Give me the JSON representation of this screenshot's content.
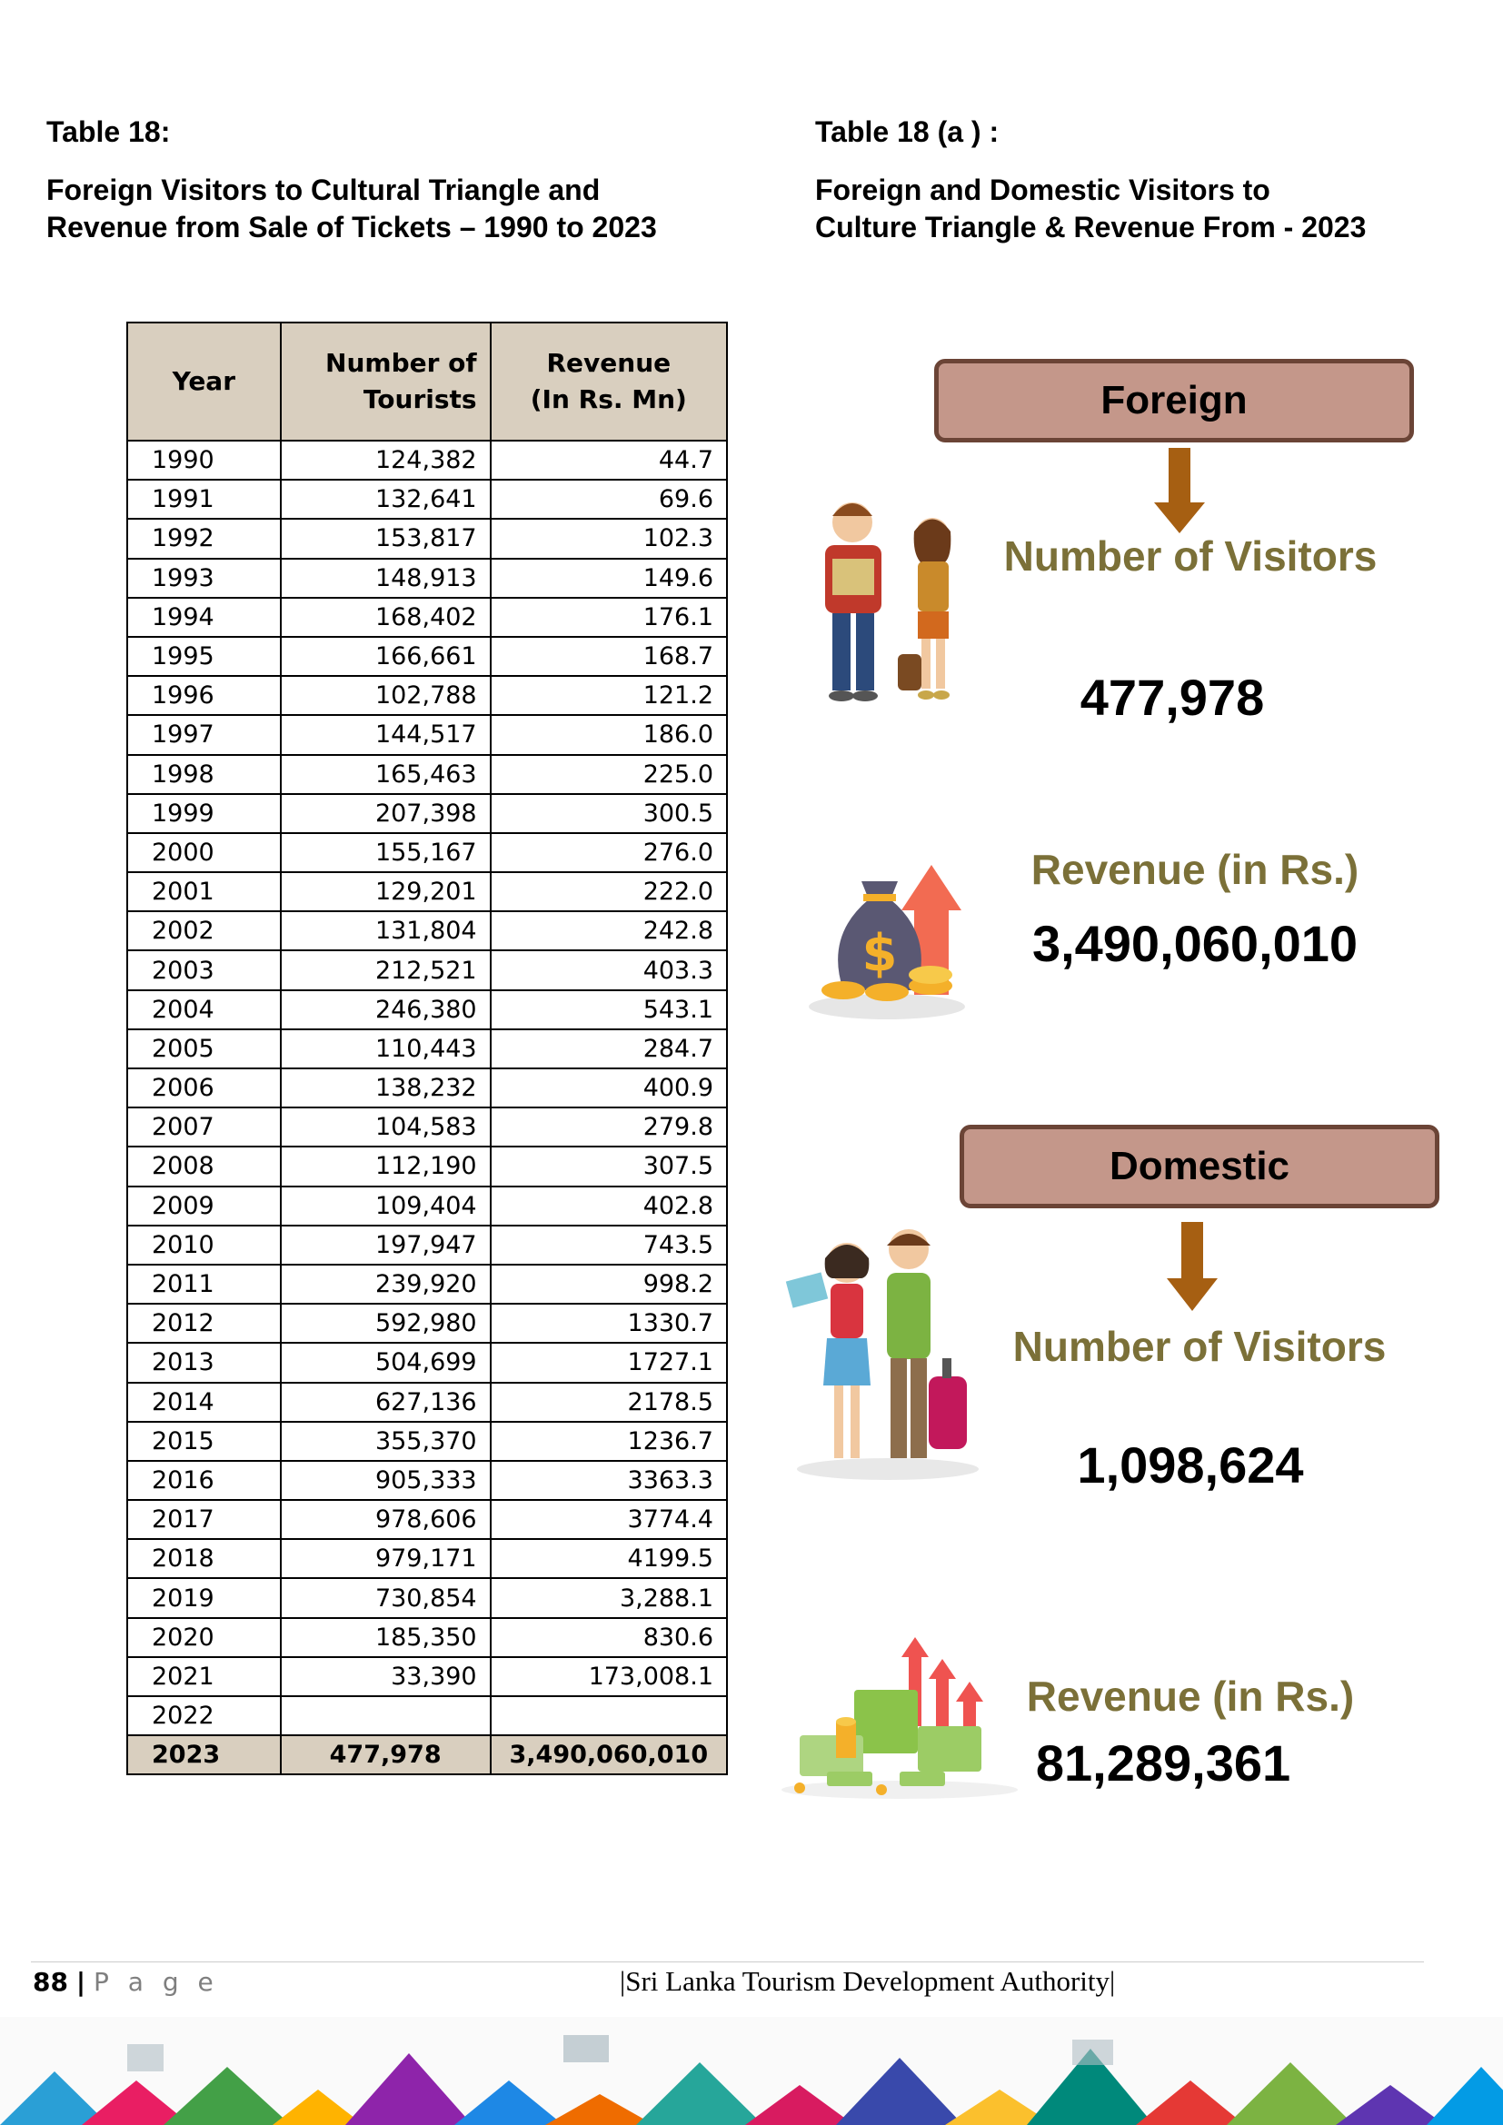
{
  "left": {
    "table_title": "Table 18:",
    "table_subtitle_line1": "Foreign Visitors to Cultural Triangle and",
    "table_subtitle_line2": "Revenue from Sale of Tickets – 1990 to 2023",
    "columns": [
      "Year",
      "Number of Tourists",
      "Revenue (In Rs. Mn)"
    ],
    "col_header_1": "Year",
    "col_header_2a": "Number of",
    "col_header_2b": "Tourists",
    "col_header_3a": "Revenue",
    "col_header_3b": "(In Rs. Mn)",
    "rows": [
      [
        "1990",
        "124,382",
        "44.7"
      ],
      [
        "1991",
        "132,641",
        "69.6"
      ],
      [
        "1992",
        "153,817",
        "102.3"
      ],
      [
        "1993",
        "148,913",
        "149.6"
      ],
      [
        "1994",
        "168,402",
        "176.1"
      ],
      [
        "1995",
        "166,661",
        "168.7"
      ],
      [
        "1996",
        "102,788",
        "121.2"
      ],
      [
        "1997",
        "144,517",
        "186.0"
      ],
      [
        "1998",
        "165,463",
        "225.0"
      ],
      [
        "1999",
        "207,398",
        "300.5"
      ],
      [
        "2000",
        "155,167",
        "276.0"
      ],
      [
        "2001",
        "129,201",
        "222.0"
      ],
      [
        "2002",
        "131,804",
        "242.8"
      ],
      [
        "2003",
        "212,521",
        "403.3"
      ],
      [
        "2004",
        "246,380",
        "543.1"
      ],
      [
        "2005",
        "110,443",
        "284.7"
      ],
      [
        "2006",
        "138,232",
        "400.9"
      ],
      [
        "2007",
        "104,583",
        "279.8"
      ],
      [
        "2008",
        "112,190",
        "307.5"
      ],
      [
        "2009",
        "109,404",
        "402.8"
      ],
      [
        "2010",
        "197,947",
        "743.5"
      ],
      [
        "2011",
        "239,920",
        "998.2"
      ],
      [
        "2012",
        "592,980",
        "1330.7"
      ],
      [
        "2013",
        "504,699",
        "1727.1"
      ],
      [
        "2014",
        "627,136",
        "2178.5"
      ],
      [
        "2015",
        "355,370",
        "1236.7"
      ],
      [
        "2016",
        "905,333",
        "3363.3"
      ],
      [
        "2017",
        "978,606",
        "3774.4"
      ],
      [
        "2018",
        "979,171",
        "4199.5"
      ],
      [
        "2019",
        "730,854",
        "3,288.1"
      ],
      [
        "2020",
        "185,350",
        "830.6"
      ],
      [
        "2021",
        "33,390",
        "173,008.1"
      ],
      [
        "2022",
        "",
        ""
      ]
    ],
    "total_row": [
      "2023",
      "477,978",
      "3,490,060,010"
    ]
  },
  "right": {
    "table_title": "Table 18 (a ) :",
    "subtitle_line1": "Foreign and Domestic Visitors to",
    "subtitle_line2": "Culture Triangle & Revenue From - 2023",
    "foreign": {
      "label": "Foreign",
      "visitors_label": "Number of Visitors",
      "visitors_value": "477,978",
      "revenue_label": "Revenue (in Rs.)",
      "revenue_value": "3,490,060,010"
    },
    "domestic": {
      "label": "Domestic",
      "visitors_label": "Number of Visitors",
      "visitors_value": "1,098,624",
      "revenue_label": "Revenue (in Rs.)",
      "revenue_value": "81,289,361"
    }
  },
  "footer": {
    "page_number": "88",
    "page_word": "P a g e",
    "organization": "|Sri Lanka Tourism Development Authority|"
  },
  "colors": {
    "header_fill": "#d9cfbf",
    "label_box_fill": "#c4978a",
    "label_box_border": "#6b4436",
    "arrow": "#a65f12",
    "olive_text": "#7b7038"
  }
}
